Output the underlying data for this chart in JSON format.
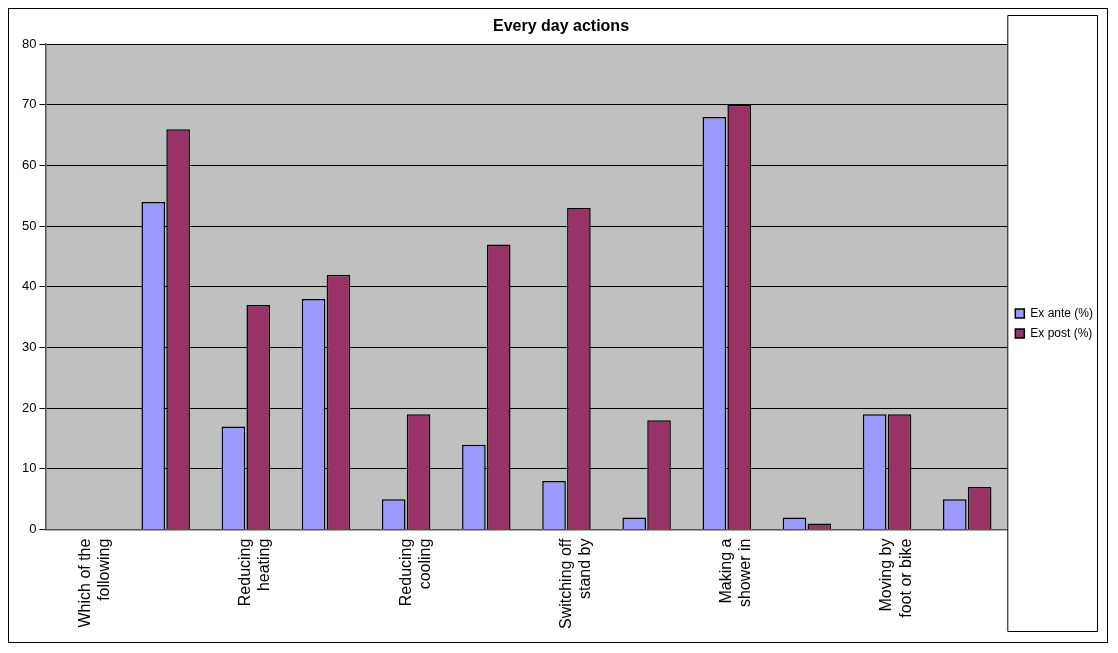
{
  "chart_data": {
    "type": "bar",
    "title": "Every day actions",
    "categories": [
      "Which of the\nfollowing",
      null,
      "Reducing\nheating",
      null,
      "Reducing\ncooling",
      null,
      "Switching off\nstand by",
      null,
      "Making a\nshower in",
      null,
      "Moving by\nfoot or bike",
      null
    ],
    "series": [
      {
        "name": "Ex ante (%)",
        "color": "#9999ff",
        "values": [
          null,
          54,
          17,
          38,
          5,
          14,
          8,
          2,
          68,
          2,
          19,
          5
        ]
      },
      {
        "name": "Ex post (%)",
        "color": "#993366",
        "values": [
          null,
          66,
          37,
          42,
          19,
          47,
          53,
          18,
          70,
          1,
          19,
          7
        ]
      }
    ],
    "ylim": [
      0,
      80
    ],
    "yticks": [
      0,
      10,
      20,
      30,
      40,
      50,
      60,
      70,
      80
    ],
    "grid": "y",
    "legend": "right"
  }
}
